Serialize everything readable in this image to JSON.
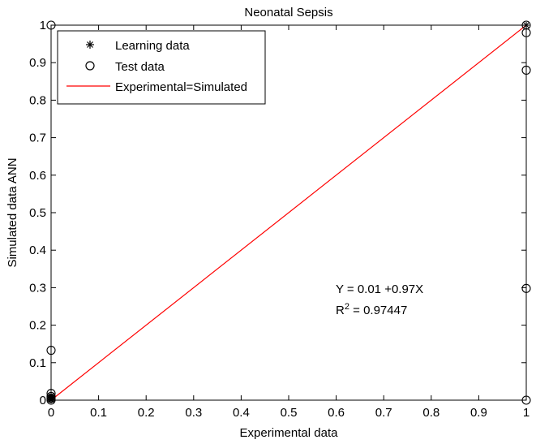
{
  "chart_data": {
    "type": "scatter",
    "title": "Neonatal Sepsis",
    "xlabel": "Experimental data",
    "ylabel": "Simulated data ANN",
    "xlim": [
      0,
      1
    ],
    "ylim": [
      0,
      1
    ],
    "xticks": [
      "0",
      "0.1",
      "0.2",
      "0.3",
      "0.4",
      "0.5",
      "0.6",
      "0.7",
      "0.8",
      "0.9",
      "1"
    ],
    "yticks": [
      "0",
      "0.1",
      "0.2",
      "0.3",
      "0.4",
      "0.5",
      "0.6",
      "0.7",
      "0.8",
      "0.9",
      "1"
    ],
    "grid": false,
    "legend_position": "top-left",
    "series": [
      {
        "name": "Learning data",
        "marker": "asterisk",
        "color": "#000000",
        "x": [
          0,
          0,
          0,
          0,
          0,
          1
        ],
        "y": [
          0.0,
          0.002,
          0.005,
          0.008,
          0.012,
          1.0
        ]
      },
      {
        "name": "Test data",
        "marker": "circle",
        "color": "#000000",
        "x": [
          0,
          0,
          0,
          0,
          0,
          0,
          1,
          1,
          1,
          1,
          1
        ],
        "y": [
          1.0,
          0.133,
          0.018,
          0.01,
          0.005,
          0.0,
          1.0,
          0.98,
          0.88,
          0.298,
          0.0
        ]
      },
      {
        "name": "Experimental=Simulated",
        "type": "line",
        "color": "#ff0000",
        "x": [
          0,
          1
        ],
        "y": [
          0,
          1
        ]
      }
    ],
    "annotations": [
      {
        "text": "Y = 0.01 +0.97X"
      },
      {
        "text_prefix": "R",
        "superscript": "2",
        "text_suffix": " = 0.97447"
      }
    ]
  }
}
